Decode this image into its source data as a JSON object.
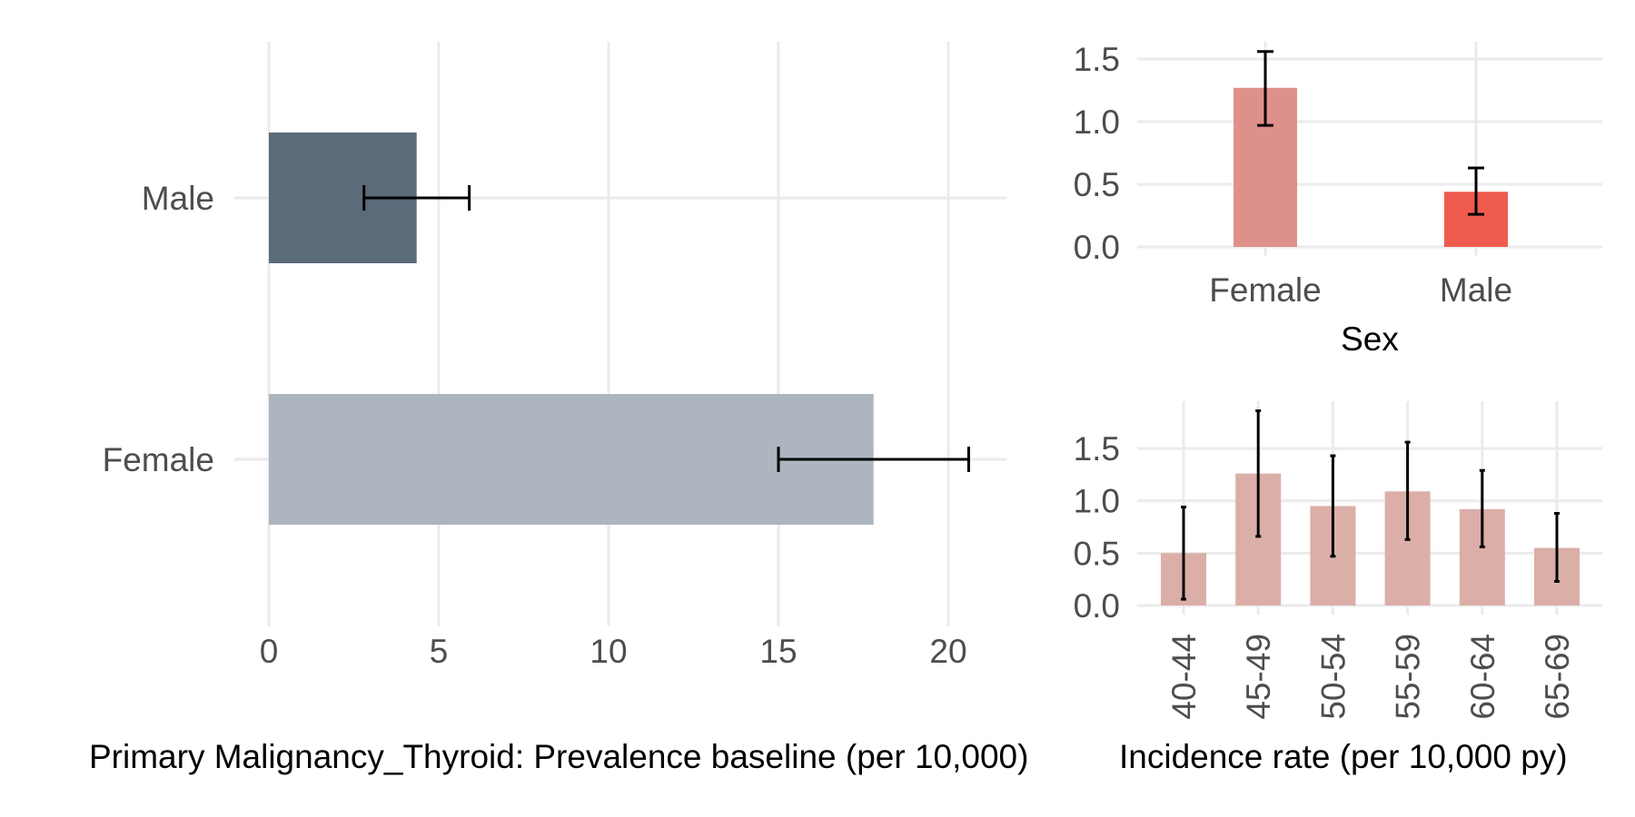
{
  "chart_data": [
    {
      "type": "bar",
      "orientation": "horizontal",
      "xlabel": "Primary Malignancy_Thyroid: Prevalence baseline (per 10,000)",
      "ylabel": "",
      "categories": [
        "Male",
        "Female"
      ],
      "values": [
        4.35,
        17.8
      ],
      "error_low": [
        2.8,
        15.0
      ],
      "error_high": [
        5.9,
        20.6
      ],
      "colors": [
        "#5c6b7a",
        "#adb5be"
      ],
      "xlim": [
        0,
        21.6
      ],
      "xticks": [
        "0",
        "5",
        "10",
        "15",
        "20"
      ],
      "xtick_values": [
        0,
        5,
        10,
        15,
        20
      ],
      "grid": true
    },
    {
      "type": "bar",
      "xlabel": "Sex",
      "ylabel": "",
      "categories": [
        "Female",
        "Male"
      ],
      "values": [
        1.27,
        0.44
      ],
      "error_low": [
        0.97,
        0.26
      ],
      "error_high": [
        1.56,
        0.63
      ],
      "colors": [
        "#de918a",
        "#ef5b4d"
      ],
      "ylim": [
        0,
        1.65
      ],
      "yticks": [
        "0.0",
        "0.5",
        "1.0",
        "1.5"
      ],
      "ytick_values": [
        0,
        0.5,
        1.0,
        1.5
      ],
      "grid": true
    },
    {
      "type": "bar",
      "xlabel": "Incidence rate (per 10,000 py)",
      "ylabel": "",
      "categories": [
        "40-44",
        "45-49",
        "50-54",
        "55-59",
        "60-64",
        "65-69"
      ],
      "values": [
        0.5,
        1.26,
        0.95,
        1.09,
        0.92,
        0.55
      ],
      "error_low": [
        0.06,
        0.66,
        0.47,
        0.63,
        0.56,
        0.23
      ],
      "error_high": [
        0.94,
        1.86,
        1.43,
        1.56,
        1.29,
        0.88
      ],
      "color": "#dbaea8",
      "ylim": [
        0,
        1.95
      ],
      "yticks": [
        "0.0",
        "0.5",
        "1.0",
        "1.5"
      ],
      "ytick_values": [
        0,
        0.5,
        1.0,
        1.5
      ],
      "xtick_rotation": -90,
      "grid": true
    }
  ]
}
